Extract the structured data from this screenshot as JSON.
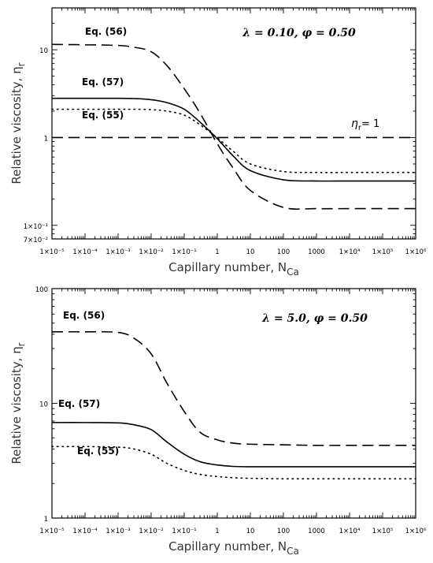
{
  "chart_data": [
    {
      "type": "line",
      "xscale": "log",
      "yscale": "log",
      "xlabel": "Capillary number, N",
      "xlabel_sub": "Ca",
      "ylabel": "Relative viscosity, η",
      "ylabel_sub": "r",
      "xlim": [
        1e-05,
        1000000.0
      ],
      "ylim": [
        0.07,
        30
      ],
      "x_ticks": [
        1e-05,
        0.0001,
        0.001,
        0.01,
        0.1,
        1,
        10,
        100,
        1000,
        10000.0,
        100000.0,
        1000000.0
      ],
      "x_tick_labels": [
        "1×10⁻⁵",
        "1×10⁻⁴",
        "1×10⁻³",
        "1×10⁻²",
        "1×10⁻¹",
        "1",
        "10",
        "100",
        "1000",
        "1×10⁴",
        "1×10⁵",
        "1×10⁶"
      ],
      "y_ticks": [
        0.07,
        0.1,
        1,
        10
      ],
      "y_tick_labels": [
        "7×10⁻²",
        "1×10⁻¹",
        "1",
        "10"
      ],
      "parameters": "λ = 0.10, φ = 0.50",
      "x": [
        1e-05,
        0.0001,
        0.001,
        0.003,
        0.01,
        0.03,
        0.1,
        0.3,
        1,
        3,
        10,
        100,
        1000,
        10000.0,
        100000.0,
        1000000.0
      ],
      "series": [
        {
          "name": "Eq. (56)",
          "style": "dashed",
          "values": [
            11.5,
            11.4,
            11.2,
            10.7,
            9.5,
            6.6,
            3.6,
            1.9,
            0.85,
            0.45,
            0.25,
            0.16,
            0.155,
            0.155,
            0.155,
            0.155
          ]
        },
        {
          "name": "Eq. (57)",
          "style": "solid",
          "values": [
            2.8,
            2.8,
            2.8,
            2.78,
            2.7,
            2.5,
            2.1,
            1.5,
            0.97,
            0.62,
            0.42,
            0.33,
            0.32,
            0.32,
            0.32,
            0.32
          ]
        },
        {
          "name": "Eq. (55)",
          "style": "dotted",
          "values": [
            2.1,
            2.1,
            2.1,
            2.1,
            2.08,
            2.0,
            1.8,
            1.4,
            0.99,
            0.7,
            0.5,
            0.41,
            0.4,
            0.4,
            0.4,
            0.4
          ]
        },
        {
          "name": "η_r = 1",
          "style": "dashed",
          "values": [
            1,
            1,
            1,
            1,
            1,
            1,
            1,
            1,
            1,
            1,
            1,
            1,
            1,
            1,
            1,
            1
          ]
        }
      ],
      "annotations": [
        {
          "text": "Eq. (56)",
          "series": 0
        },
        {
          "text": "Eq. (57)",
          "series": 1
        },
        {
          "text": "Eq. (55)",
          "series": 2
        },
        {
          "text": "η",
          "sub": "r",
          "suffix": "= 1",
          "series": 3
        }
      ]
    },
    {
      "type": "line",
      "xscale": "log",
      "yscale": "log",
      "xlabel": "Capillary number, N",
      "xlabel_sub": "Ca",
      "ylabel": "Relative viscosity, η",
      "ylabel_sub": "r",
      "xlim": [
        1e-05,
        1000000.0
      ],
      "ylim": [
        1,
        100
      ],
      "x_ticks": [
        1e-05,
        0.0001,
        0.001,
        0.01,
        0.1,
        1,
        10,
        100,
        1000,
        10000.0,
        100000.0,
        1000000.0
      ],
      "x_tick_labels": [
        "1×10⁻⁵",
        "1×10⁻⁴",
        "1×10⁻³",
        "1×10⁻²",
        "1×10⁻¹",
        "1",
        "10",
        "100",
        "1000",
        "1×10⁴",
        "1×10⁵",
        "1×10⁶"
      ],
      "y_ticks": [
        1,
        10,
        100
      ],
      "y_tick_labels": [
        "1",
        "10",
        "100"
      ],
      "parameters": "λ = 5.0, φ = 0.50",
      "x": [
        1e-05,
        0.0001,
        0.001,
        0.003,
        0.01,
        0.03,
        0.1,
        0.3,
        1,
        3,
        10,
        100,
        1000,
        10000.0,
        100000.0,
        1000000.0
      ],
      "series": [
        {
          "name": "Eq. (56)",
          "style": "dashed",
          "values": [
            42,
            42,
            41.5,
            37,
            27,
            15,
            8.5,
            5.6,
            4.8,
            4.5,
            4.4,
            4.35,
            4.3,
            4.3,
            4.3,
            4.3
          ]
        },
        {
          "name": "Eq. (57)",
          "style": "solid",
          "values": [
            6.8,
            6.8,
            6.75,
            6.5,
            5.9,
            4.6,
            3.6,
            3.1,
            2.9,
            2.82,
            2.8,
            2.8,
            2.8,
            2.8,
            2.8,
            2.8
          ]
        },
        {
          "name": "Eq. (55)",
          "style": "dotted",
          "values": [
            4.2,
            4.2,
            4.15,
            4.0,
            3.6,
            3.0,
            2.6,
            2.4,
            2.3,
            2.25,
            2.22,
            2.2,
            2.2,
            2.2,
            2.2,
            2.2
          ]
        }
      ],
      "annotations": [
        {
          "text": "Eq. (56)",
          "series": 0
        },
        {
          "text": "Eq. (57)",
          "series": 1
        },
        {
          "text": "Eq. (55)",
          "series": 2
        }
      ]
    }
  ]
}
